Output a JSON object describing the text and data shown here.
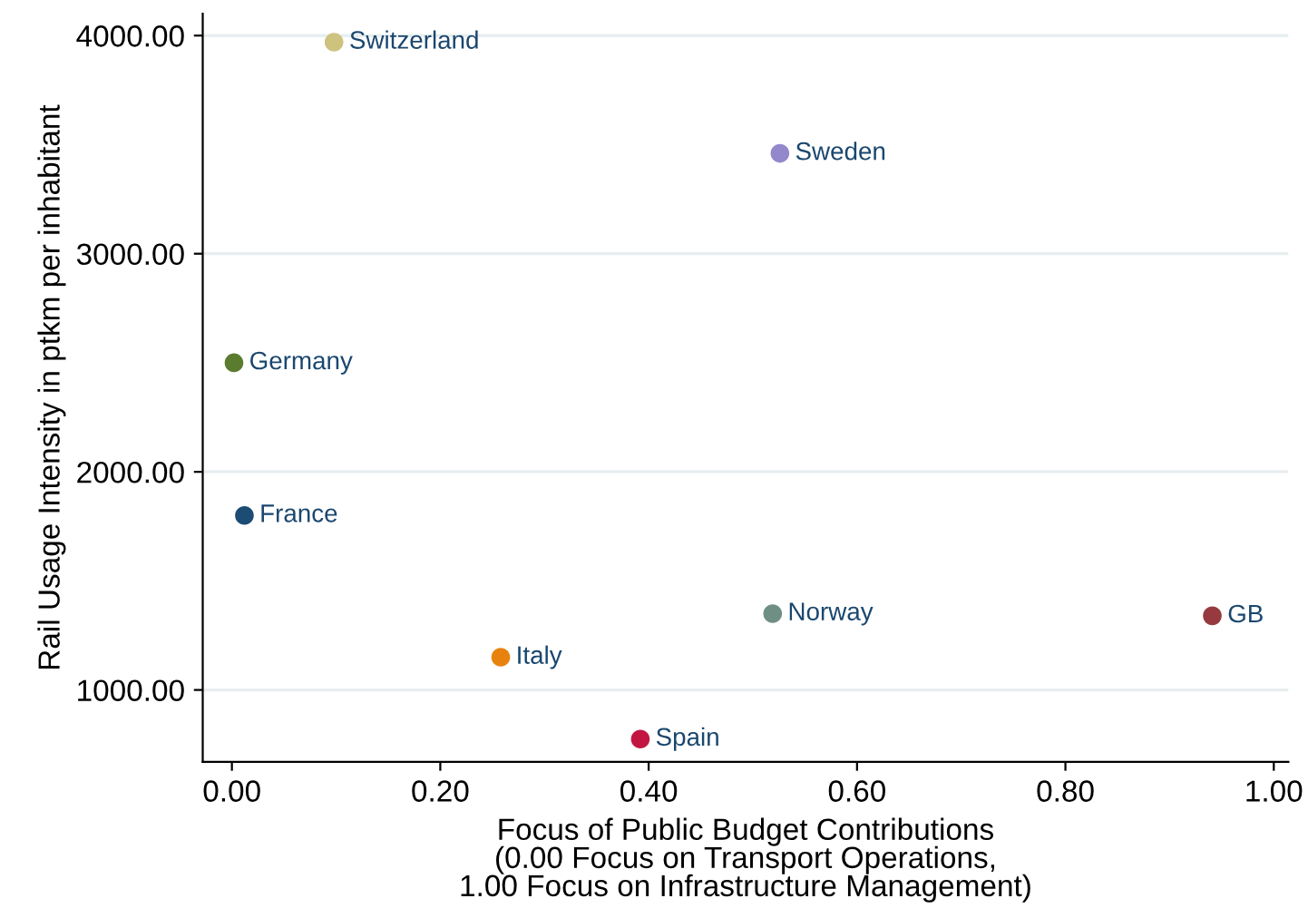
{
  "chart_data": {
    "type": "scatter",
    "xlabel": "Focus of Public Budget Contributions\n(0.00 Focus on Transport Operations,\n1.00 Focus on Infrastructure Management)",
    "ylabel": "Rail Usage Intensity in ptkm per inhabitant",
    "series": [
      {
        "name": "Switzerland",
        "color": "#cdc27e",
        "x": [
          0.098
        ],
        "values": [
          3970
        ]
      },
      {
        "name": "Sweden",
        "color": "#9488cc",
        "x": [
          0.526
        ],
        "values": [
          3460
        ]
      },
      {
        "name": "Germany",
        "color": "#5b7b2f",
        "x": [
          0.002
        ],
        "values": [
          2500
        ]
      },
      {
        "name": "France",
        "color": "#1c4b73",
        "x": [
          0.012
        ],
        "values": [
          1800
        ]
      },
      {
        "name": "Norway",
        "color": "#6f8f84",
        "x": [
          0.519
        ],
        "values": [
          1350
        ]
      },
      {
        "name": "GB",
        "color": "#963a3f",
        "x": [
          0.941
        ],
        "values": [
          1340
        ]
      },
      {
        "name": "Italy",
        "color": "#e8820e",
        "x": [
          0.258
        ],
        "values": [
          1150
        ]
      },
      {
        "name": "Spain",
        "color": "#c21640",
        "x": [
          0.392
        ],
        "values": [
          775
        ]
      }
    ],
    "xlim": [
      -0.028,
      1.014
    ],
    "ylim": [
      670,
      4100
    ],
    "xticks": [
      {
        "value": 0,
        "label": "0.00"
      },
      {
        "value": 0.2,
        "label": "0.20"
      },
      {
        "value": 0.4,
        "label": "0.40"
      },
      {
        "value": 0.6,
        "label": "0.60"
      },
      {
        "value": 0.8,
        "label": "0.80"
      },
      {
        "value": 1,
        "label": "1.00"
      }
    ],
    "yticks": [
      {
        "value": 1000,
        "label": "1000.00"
      },
      {
        "value": 2000,
        "label": "2000.00"
      },
      {
        "value": 3000,
        "label": "3000.00"
      },
      {
        "value": 4000,
        "label": "4000.00"
      }
    ],
    "grid": "y",
    "legend": false,
    "marker": "circle"
  }
}
